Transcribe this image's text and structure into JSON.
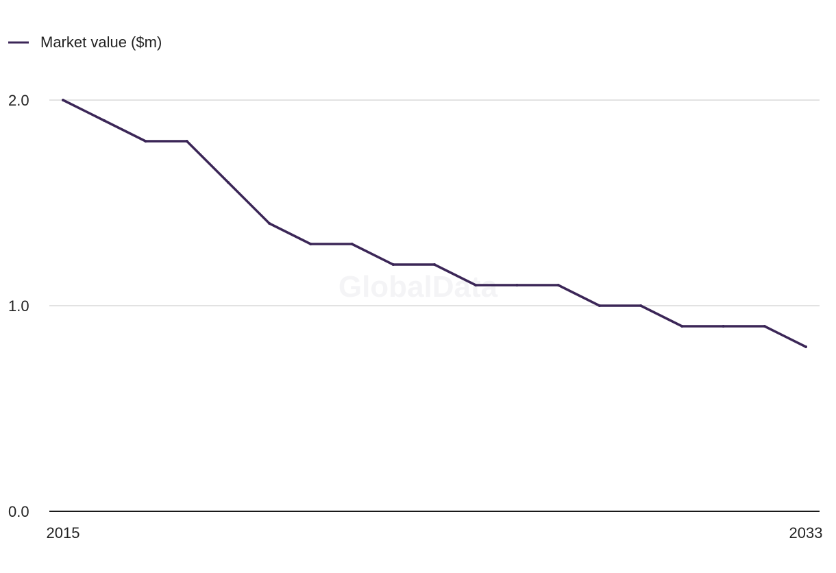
{
  "chart_data": {
    "type": "line",
    "legend_position": "top-left",
    "watermark": "GlobalData",
    "x": [
      "2015",
      "2016",
      "2017",
      "2018",
      "2019",
      "2020",
      "2021",
      "2022",
      "2023",
      "2024",
      "2025",
      "2026",
      "2027",
      "2028",
      "2029",
      "2030",
      "2031",
      "2032",
      "2033"
    ],
    "x_tick_labels": [
      "2015",
      "2033"
    ],
    "y_tick_labels": [
      "0.0",
      "1.0",
      "2.0"
    ],
    "ylim": [
      0,
      2
    ],
    "grid": true,
    "series": [
      {
        "name": "Market value ($m)",
        "color": "#3b2657",
        "values": [
          2.0,
          1.9,
          1.8,
          1.8,
          1.6,
          1.4,
          1.3,
          1.3,
          1.2,
          1.2,
          1.1,
          1.1,
          1.1,
          1.0,
          1.0,
          0.9,
          0.9,
          0.9,
          0.8
        ]
      }
    ]
  }
}
